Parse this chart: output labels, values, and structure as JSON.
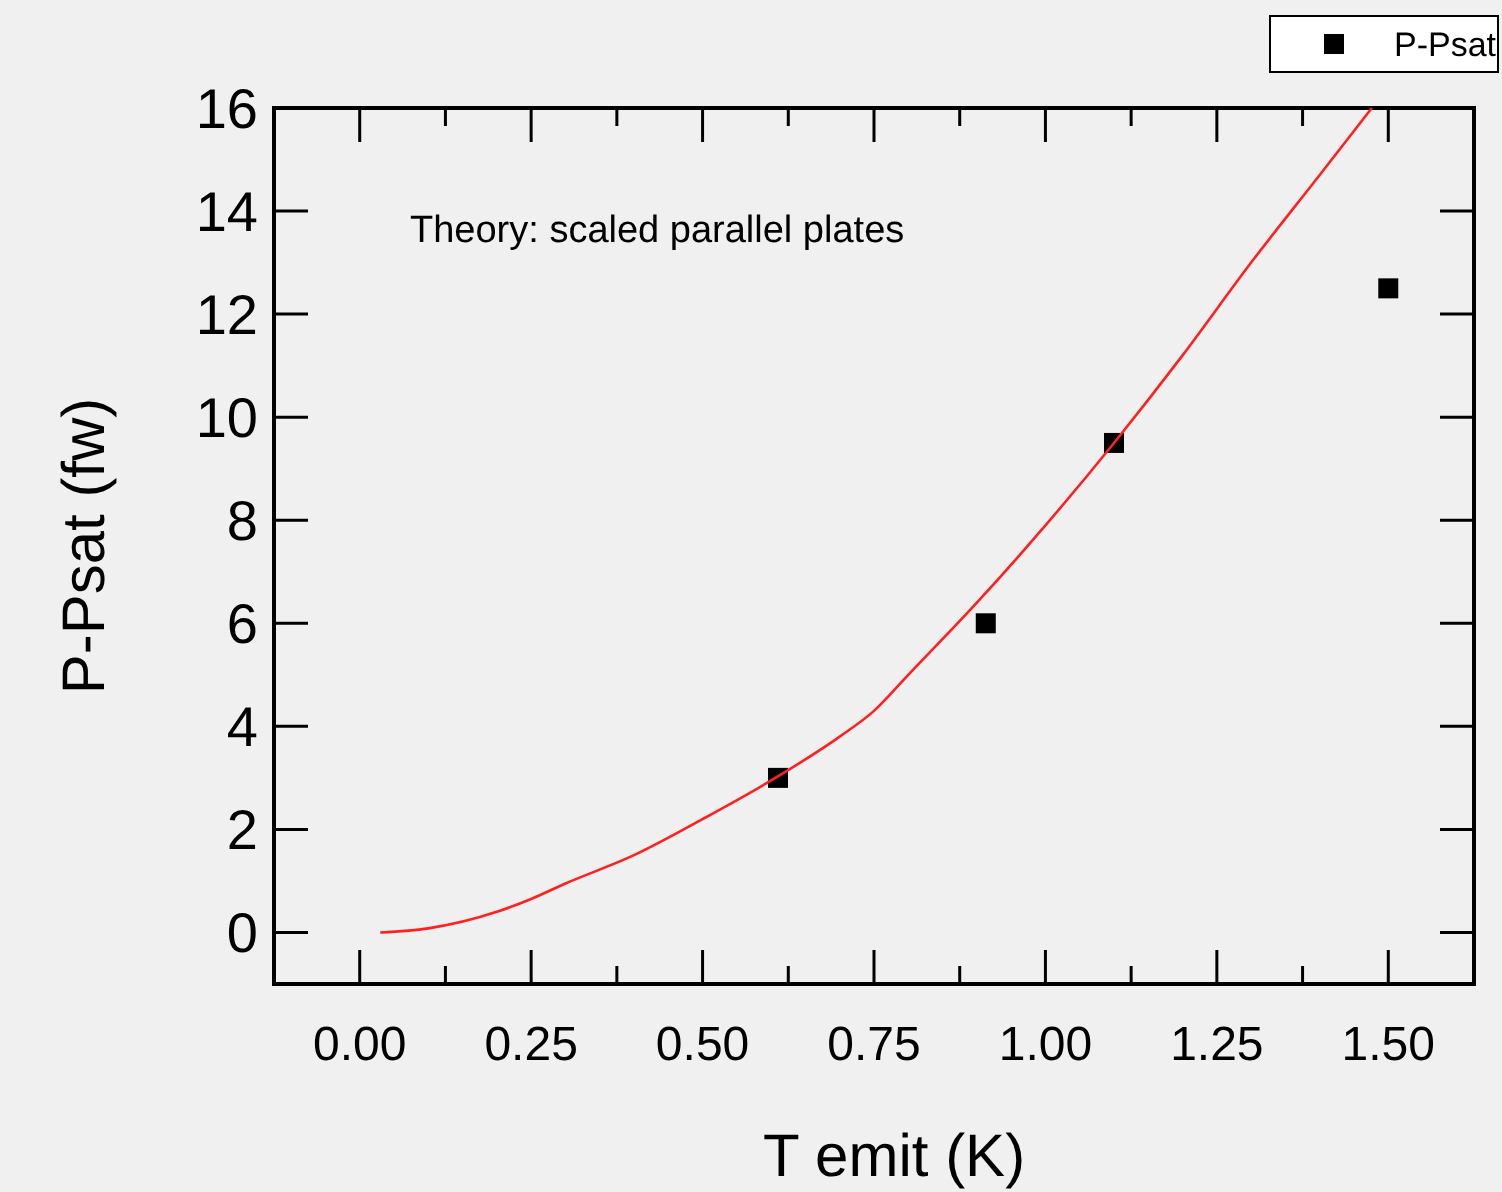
{
  "chart_data": {
    "type": "scatter",
    "xlabel": "T emit (K)",
    "ylabel": "P-Psat (fw)",
    "annotations": [
      "Theory: scaled parallel plates"
    ],
    "xlim": [
      -0.125,
      1.625
    ],
    "ylim": [
      -1,
      16
    ],
    "xticks": [
      {
        "value": -0.125,
        "label": null
      },
      {
        "value": 0,
        "label": "0.00"
      },
      {
        "value": 0.125,
        "label": null
      },
      {
        "value": 0.25,
        "label": "0.25"
      },
      {
        "value": 0.375,
        "label": null
      },
      {
        "value": 0.5,
        "label": "0.50"
      },
      {
        "value": 0.625,
        "label": null
      },
      {
        "value": 0.75,
        "label": "0.75"
      },
      {
        "value": 0.875,
        "label": null
      },
      {
        "value": 1,
        "label": "1.00"
      },
      {
        "value": 1.125,
        "label": null
      },
      {
        "value": 1.25,
        "label": "1.25"
      },
      {
        "value": 1.375,
        "label": null
      },
      {
        "value": 1.5,
        "label": "1.50"
      }
    ],
    "yticks": [
      0,
      2,
      4,
      6,
      8,
      10,
      12,
      14,
      16
    ],
    "legend": "top right",
    "marker": "square",
    "series": [
      {
        "name": "P-Psat",
        "color": "#000000",
        "x": [
          0.61,
          0.913,
          1.1,
          1.5
        ],
        "values": [
          3,
          6,
          9.5,
          12.5
        ]
      },
      {
        "type": "line",
        "color": "#ff2020",
        "marker": "none",
        "x": [
          0.03,
          0.1,
          0.2,
          0.25,
          0.3,
          0.4,
          0.5,
          0.6,
          0.7,
          0.75,
          0.8,
          0.9,
          1.0,
          1.1,
          1.2,
          1.3,
          1.4,
          1.476
        ],
        "values": [
          0,
          0.08,
          0.4,
          0.65,
          0.95,
          1.5,
          2.2,
          2.95,
          3.8,
          4.3,
          5.0,
          6.4,
          7.9,
          9.5,
          11.2,
          13.0,
          14.7,
          16
        ]
      }
    ]
  }
}
